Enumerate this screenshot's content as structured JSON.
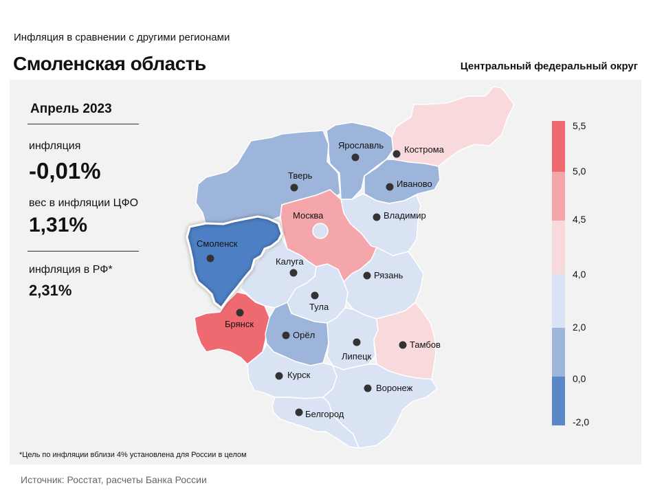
{
  "header": {
    "subtitle": "Инфляция  в сравнении  с другими  регионами",
    "title": "Смоленская область",
    "district": "Центральный федеральный округ"
  },
  "stats": {
    "period": "Апрель 2023",
    "inflation_label": "инфляция",
    "inflation_value": "-0,01%",
    "weight_label": "вес в инфляции  ЦФО",
    "weight_value": "1,31%",
    "rf_label": "инфляция  в РФ*",
    "rf_value": "2,31%"
  },
  "colors": {
    "band_neg2_0": "#5b87c6",
    "band_0_2": "#9db5da",
    "band_2_4": "#dae3f3",
    "band_4_45": "#f8d9dc",
    "band_45_5": "#f4a6ab",
    "band_5_55": "#ef6a70",
    "highlight": "#4d7fc4"
  },
  "legend": {
    "ticks": [
      "5,5",
      "5,0",
      "4,5",
      "4,0",
      "2,0",
      "0,0",
      "-2,0"
    ]
  },
  "regions": [
    {
      "name": "Смоленск",
      "band": "highlight"
    },
    {
      "name": "Брянск",
      "band": "band_5_55"
    },
    {
      "name": "Москва",
      "band": "band_45_5"
    },
    {
      "name": "Кострома",
      "band": "band_4_45"
    },
    {
      "name": "Тамбов",
      "band": "band_4_45"
    },
    {
      "name": "Тверь",
      "band": "band_0_2"
    },
    {
      "name": "Ярославль",
      "band": "band_0_2"
    },
    {
      "name": "Иваново",
      "band": "band_0_2"
    },
    {
      "name": "Орёл",
      "band": "band_0_2"
    },
    {
      "name": "Владимир",
      "band": "band_2_4"
    },
    {
      "name": "Калуга",
      "band": "band_2_4"
    },
    {
      "name": "Тула",
      "band": "band_2_4"
    },
    {
      "name": "Рязань",
      "band": "band_2_4"
    },
    {
      "name": "Липецк",
      "band": "band_2_4"
    },
    {
      "name": "Курск",
      "band": "band_2_4"
    },
    {
      "name": "Воронеж",
      "band": "band_2_4"
    },
    {
      "name": "Белгород",
      "band": "band_2_4"
    }
  ],
  "footnote": "*Цель по инфляции вблизи 4% установлена для России в целом",
  "source": "Источник: Росстат, расчеты Банка России"
}
